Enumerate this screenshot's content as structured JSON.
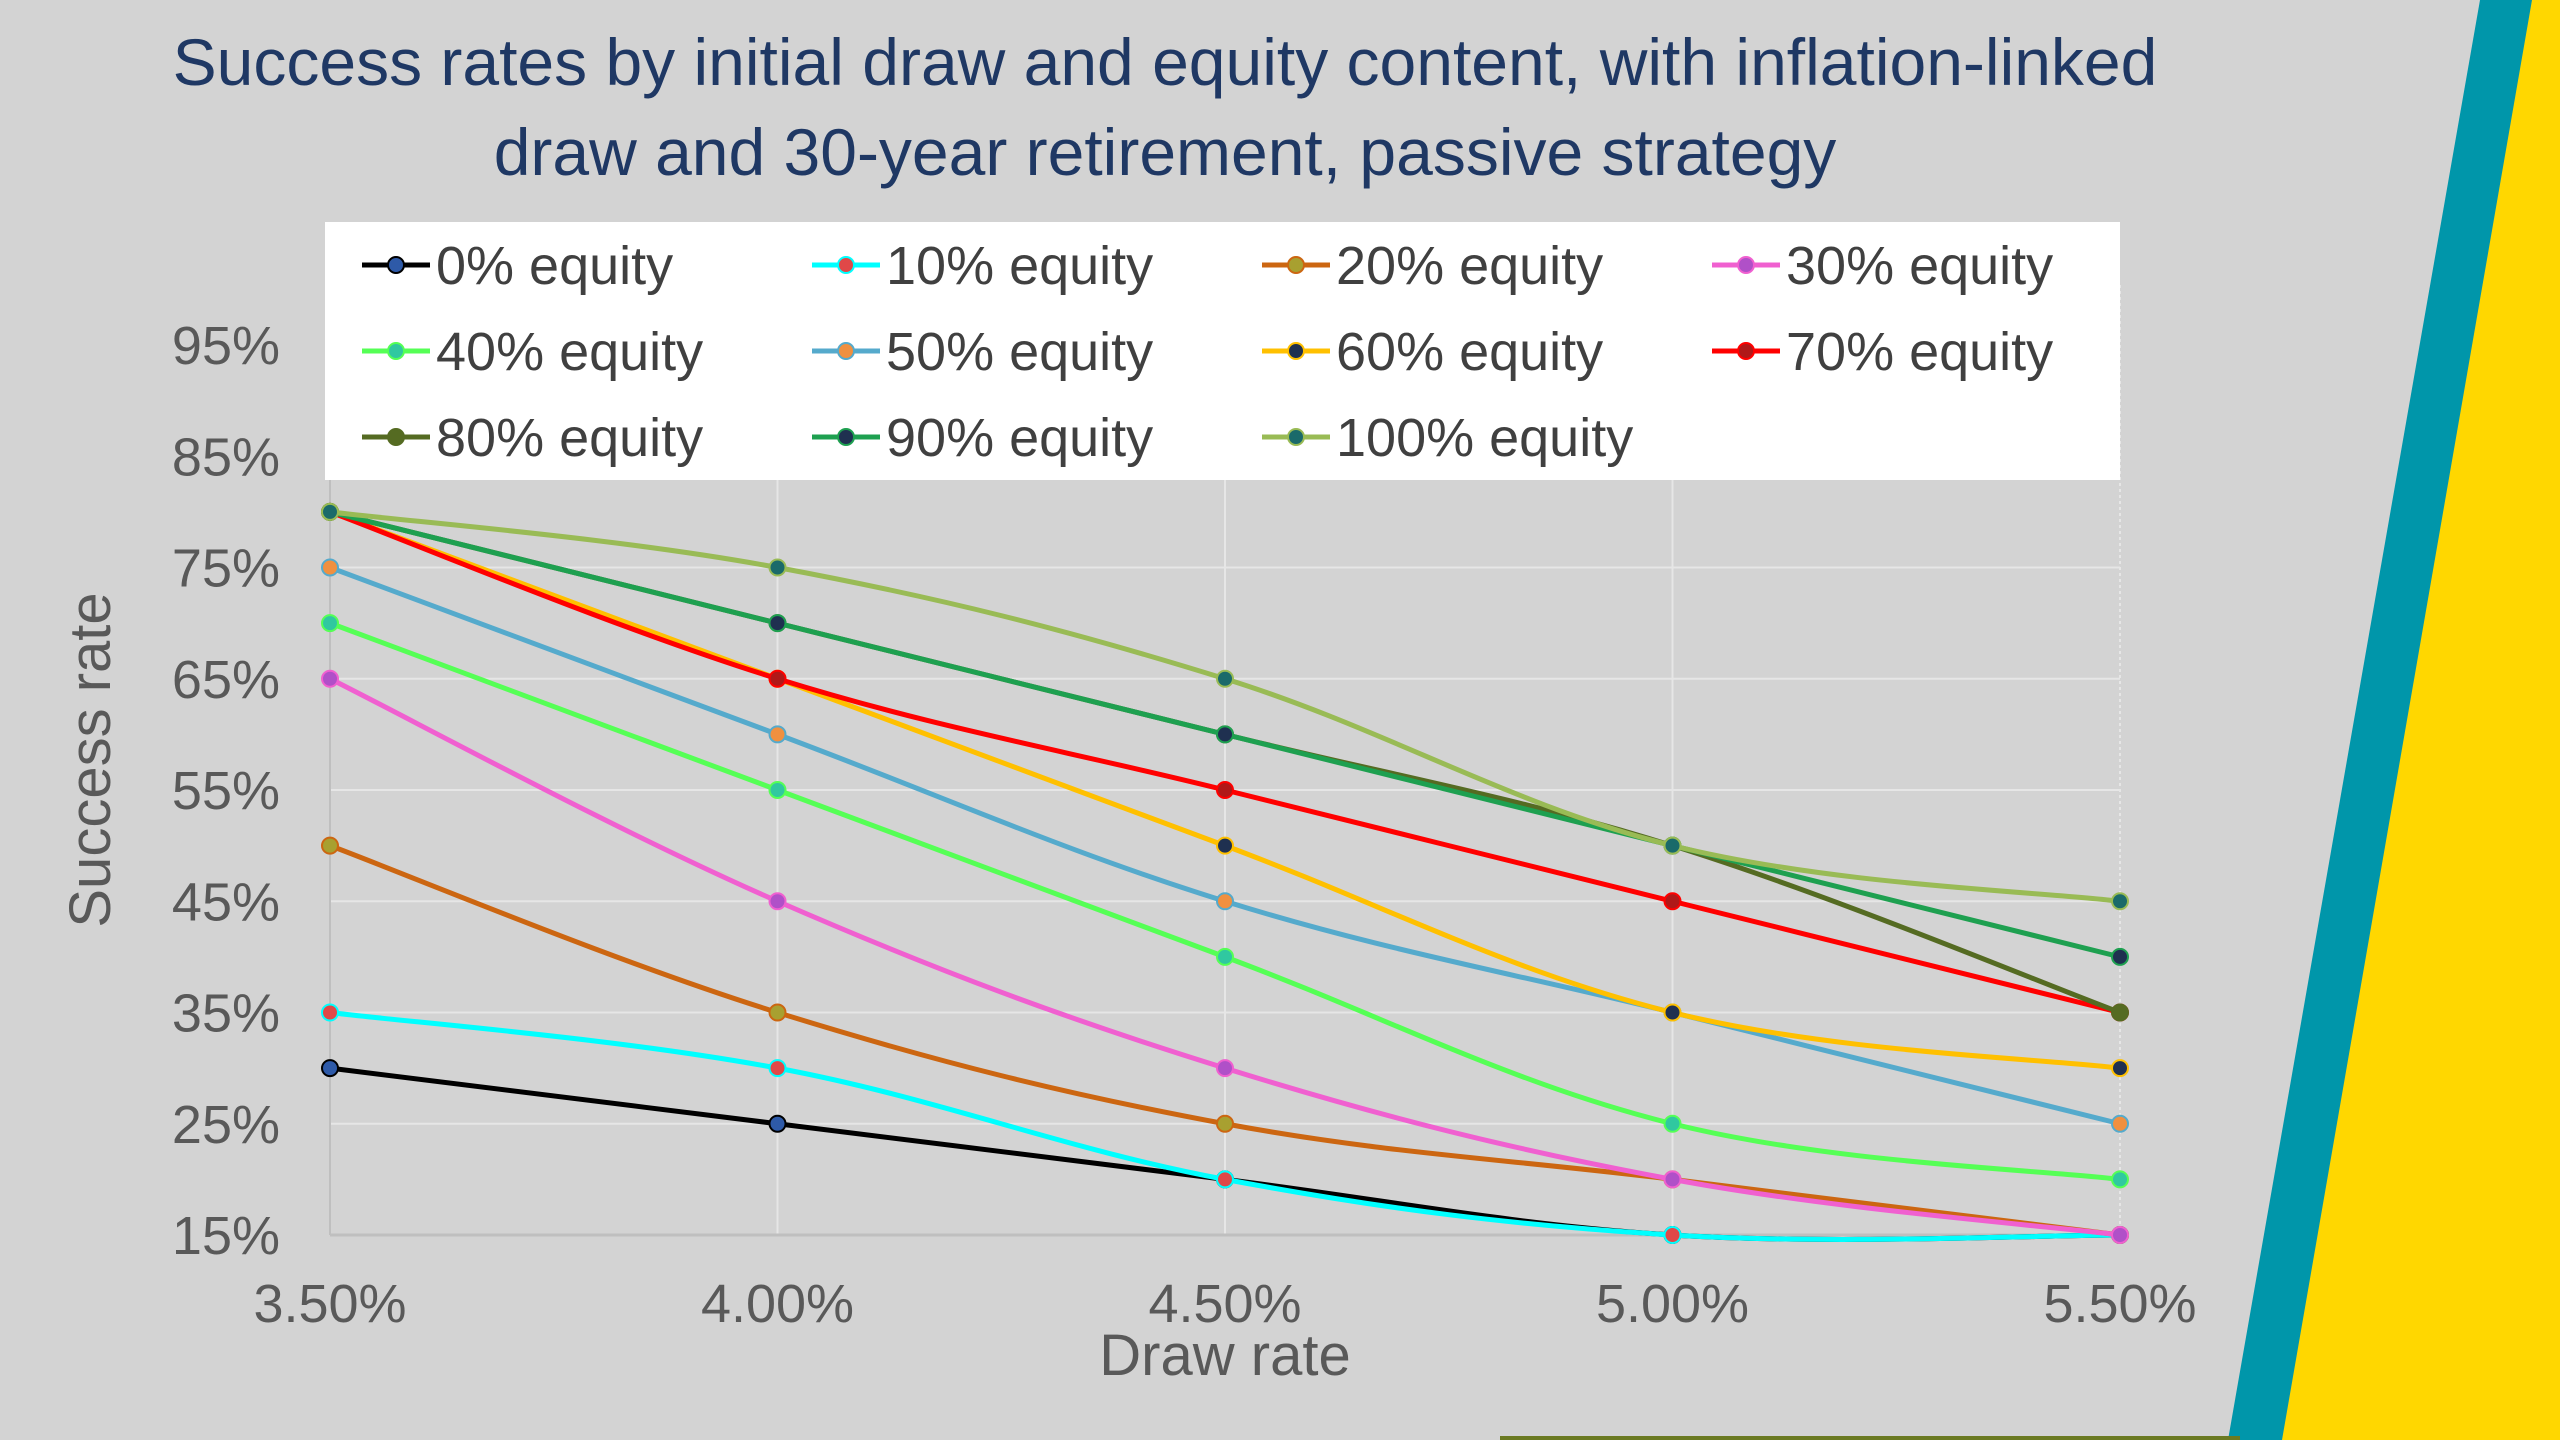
{
  "chart_data": {
    "type": "line",
    "title_lines": [
      "Success rates by initial draw and equity content, with inflation-linked",
      "draw and 30-year retirement, passive strategy"
    ],
    "xlabel": "Draw rate",
    "ylabel": "Success rate",
    "x": [
      "3.50%",
      "4.00%",
      "4.50%",
      "5.00%",
      "5.50%"
    ],
    "y_ticks": [
      "15%",
      "25%",
      "35%",
      "45%",
      "55%",
      "65%",
      "75%",
      "85%",
      "95%"
    ],
    "ylim": [
      15,
      95
    ],
    "grid": true,
    "legend_position": "top",
    "series": [
      {
        "name": "0% equity",
        "color": "#000000",
        "marker": "#2e5aa8",
        "values": [
          30,
          25,
          20,
          15,
          15
        ]
      },
      {
        "name": "10% equity",
        "color": "#00ffff",
        "marker": "#e04848",
        "values": [
          35,
          30,
          20,
          15,
          15
        ]
      },
      {
        "name": "20% equity",
        "color": "#cc6611",
        "marker": "#a8a030",
        "values": [
          50,
          35,
          25,
          20,
          15
        ]
      },
      {
        "name": "30% equity",
        "color": "#f060d0",
        "marker": "#b050c8",
        "values": [
          65,
          45,
          30,
          20,
          15
        ]
      },
      {
        "name": "40% equity",
        "color": "#55ff55",
        "marker": "#30c8a0",
        "values": [
          70,
          55,
          40,
          25,
          20
        ]
      },
      {
        "name": "50% equity",
        "color": "#55aacc",
        "marker": "#f09040",
        "values": [
          75,
          60,
          45,
          35,
          25
        ]
      },
      {
        "name": "60% equity",
        "color": "#ffc000",
        "marker": "#1f3050",
        "values": [
          80,
          65,
          50,
          35,
          30
        ]
      },
      {
        "name": "70% equity",
        "color": "#ff0000",
        "marker": "#b01818",
        "values": [
          80,
          65,
          55,
          45,
          35
        ]
      },
      {
        "name": "80% equity",
        "color": "#556b22",
        "marker": "#556b22",
        "values": [
          80,
          70,
          60,
          50,
          35
        ]
      },
      {
        "name": "90% equity",
        "color": "#1ea050",
        "marker": "#1f3050",
        "values": [
          80,
          70,
          60,
          50,
          40
        ]
      },
      {
        "name": "100% equity",
        "color": "#99bb55",
        "marker": "#1a6a6a",
        "values": [
          80,
          75,
          65,
          50,
          45
        ]
      }
    ],
    "colors": {
      "background": "#d3d3d3",
      "title": "#1f3864",
      "axis_text": "#595959",
      "legend_text": "#404040",
      "accent_teal": "#0096aa",
      "accent_yellow": "#ffd700"
    }
  }
}
